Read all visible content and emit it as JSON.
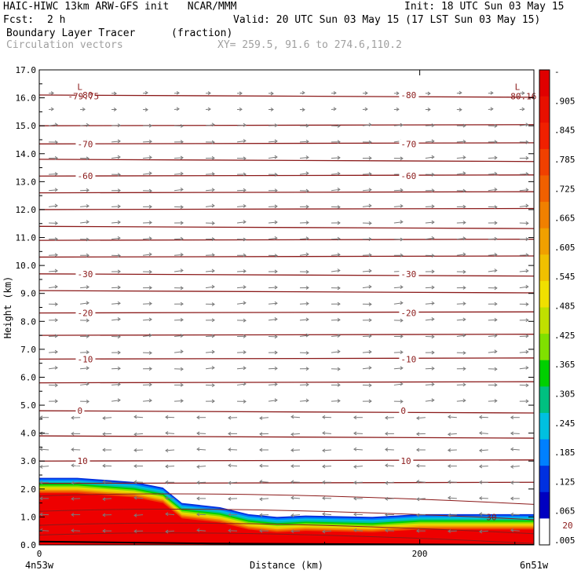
{
  "header": {
    "title_left": "HAIC-HIWC 13km ARW-GFS init   NCAR/MMM",
    "init": "Init: 18 UTC Sun 03 May 15",
    "fcst_label": "Fcst:",
    "fcst_value": "2 h",
    "valid": "Valid: 20 UTC Sun 03 May 15 (17 LST Sun 03 May 15)",
    "field_name": "Boundary Layer Tracer",
    "field_unit": "(fraction)",
    "vector_label": "Circulation vectors",
    "xy_label": "XY= 259.5, 91.6 to 274.6,110.2"
  },
  "chart_data": {
    "type": "heatmap",
    "ylabel": "Height (km)",
    "xlabel": "Distance (km)",
    "xlim": [
      0,
      260
    ],
    "ylim": [
      0,
      17
    ],
    "xticks": [
      0,
      200
    ],
    "yticks": [
      "0.0",
      "1.0",
      "2.0",
      "3.0",
      "4.0",
      "5.0",
      "6.0",
      "7.0",
      "8.0",
      "9.0",
      "10.0",
      "11.0",
      "12.0",
      "13.0",
      "14.0",
      "15.0",
      "16.0",
      "17.0"
    ],
    "x_endpoints": [
      "4n53w",
      "6n51w"
    ],
    "colorbar": {
      "labels": [
        "-",
        ".905",
        ".845",
        ".785",
        ".725",
        ".665",
        ".605",
        ".545",
        ".485",
        ".425",
        ".365",
        ".305",
        ".245",
        ".185",
        ".125",
        ".065",
        ".005"
      ],
      "colors": [
        "#e00000",
        "#e81000",
        "#f02000",
        "#f04000",
        "#f06000",
        "#f08000",
        "#f0a000",
        "#f0c000",
        "#f0e000",
        "#c0e000",
        "#80e000",
        "#00d000",
        "#00c080",
        "#00c0e0",
        "#0080ff",
        "#0030e0",
        "#0000c0",
        "#ffffff"
      ]
    },
    "temperature_contours": [
      {
        "value": "-80",
        "y": 16.1
      },
      {
        "value": "-70",
        "y": 14.35
      },
      {
        "value": "-60",
        "y": 13.2
      },
      {
        "value": "-30",
        "y": 9.7
      },
      {
        "value": "-20",
        "y": 8.3
      },
      {
        "value": "-10",
        "y": 6.65
      },
      {
        "value": "0",
        "y": 4.8
      },
      {
        "value": "10",
        "y": 3.0
      }
    ],
    "extra_isotherm_heights": [
      15.0,
      13.8,
      12.6,
      12.0,
      11.4,
      10.9,
      10.3,
      9.1,
      7.5,
      5.8,
      3.9,
      2.2
    ],
    "low_labels": [
      {
        "symbol": "L",
        "value": "-79.75",
        "x": 15,
        "y": 16.0
      },
      {
        "symbol": "L",
        "value": "-80.16",
        "x": 245,
        "y": 16.0
      }
    ],
    "near_surface_labels": [
      {
        "value": "30",
        "x": 235,
        "y": 1.0
      },
      {
        "value": "20",
        "x": 275,
        "y": 0.7
      }
    ],
    "tracer_top_km": [
      {
        "x": 0,
        "y": 2.4
      },
      {
        "x": 20,
        "y": 2.4
      },
      {
        "x": 50,
        "y": 2.25
      },
      {
        "x": 65,
        "y": 2.05
      },
      {
        "x": 75,
        "y": 1.5
      },
      {
        "x": 95,
        "y": 1.35
      },
      {
        "x": 110,
        "y": 1.1
      },
      {
        "x": 125,
        "y": 1.0
      },
      {
        "x": 140,
        "y": 1.05
      },
      {
        "x": 175,
        "y": 1.0
      },
      {
        "x": 200,
        "y": 1.1
      },
      {
        "x": 260,
        "y": 1.1
      }
    ]
  }
}
